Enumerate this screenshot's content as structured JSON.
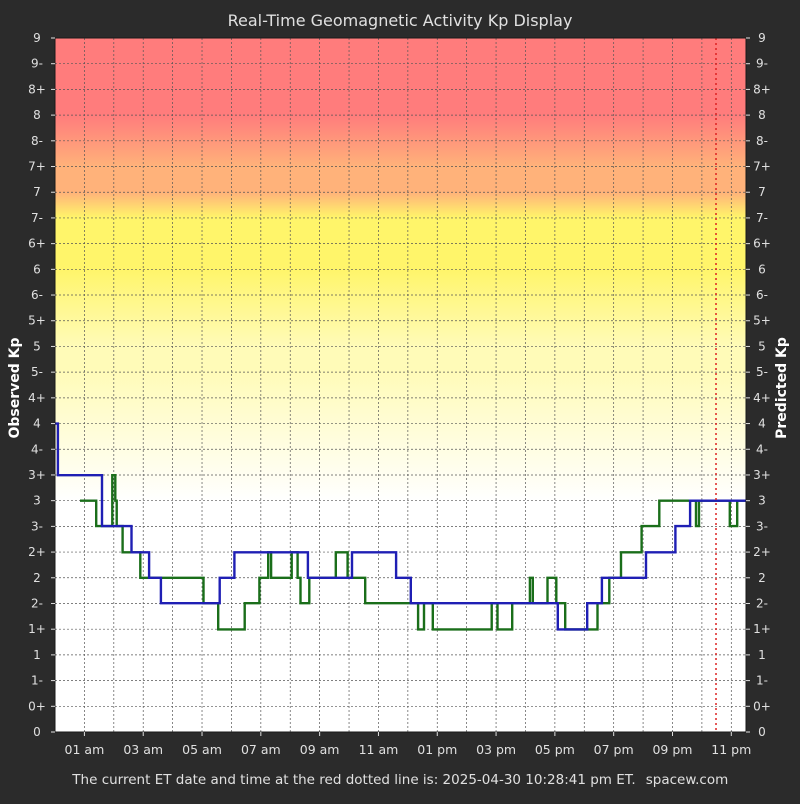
{
  "chart_data": {
    "type": "line",
    "title": "Real-Time Geomagnetic Activity Kp Display",
    "ylabel_left": "Observed Kp",
    "ylabel_right": "Predicted Kp",
    "footer": "The current ET date and time at the red dotted line is: 2025-04-30 10:28:41 pm ET.",
    "brand": "spacew.com",
    "x_unit": "hours since 00:00 ET",
    "xlim": [
      0,
      23.5
    ],
    "ylim": [
      0,
      9
    ],
    "x_ticks": [
      1,
      3,
      5,
      7,
      9,
      11,
      13,
      15,
      17,
      19,
      21,
      23
    ],
    "x_tick_labels": [
      "01 am",
      "03 am",
      "05 am",
      "07 am",
      "09 am",
      "11 am",
      "01 pm",
      "03 pm",
      "05 pm",
      "07 pm",
      "09 pm",
      "11 pm"
    ],
    "y_tick_labels": [
      "0",
      "0+",
      "1-",
      "1",
      "1+",
      "2-",
      "2",
      "2+",
      "3-",
      "3",
      "3+",
      "4-",
      "4",
      "4+",
      "5-",
      "5",
      "5+",
      "6-",
      "6",
      "6+",
      "7-",
      "7",
      "7+",
      "8-",
      "8",
      "8+",
      "9-",
      "9"
    ],
    "grid": true,
    "background_bands": [
      {
        "from": 0,
        "to": 3,
        "color": "#ffffff"
      },
      {
        "from": 4.67,
        "to": 5,
        "color": "#fffbb8"
      },
      {
        "from": 6,
        "to": 6.67,
        "color": "#fff56a"
      },
      {
        "from": 7,
        "to": 7.33,
        "color": "#ffb27a"
      },
      {
        "from": 8,
        "to": 9,
        "color": "#ff7c7c"
      }
    ],
    "current_time_x": 22.48,
    "current_time_color": "#dd2222",
    "series": [
      {
        "color": "#1a6e1a",
        "points": [
          [
            0.85,
            3
          ],
          [
            1.4,
            3
          ],
          [
            1.4,
            2.67
          ],
          [
            1.95,
            2.67
          ],
          [
            1.95,
            3.33
          ],
          [
            2.05,
            3.33
          ],
          [
            2.05,
            3
          ],
          [
            2.1,
            3
          ],
          [
            2.1,
            2.67
          ],
          [
            2.3,
            2.67
          ],
          [
            2.3,
            2.33
          ],
          [
            2.9,
            2.33
          ],
          [
            2.9,
            2
          ],
          [
            5.05,
            2
          ],
          [
            5.05,
            1.67
          ],
          [
            5.55,
            1.67
          ],
          [
            5.55,
            1.33
          ],
          [
            6.45,
            1.33
          ],
          [
            6.45,
            1.67
          ],
          [
            6.95,
            1.67
          ],
          [
            6.95,
            2
          ],
          [
            7.25,
            2
          ],
          [
            7.25,
            2.33
          ],
          [
            7.35,
            2.33
          ],
          [
            7.35,
            2
          ],
          [
            8.05,
            2
          ],
          [
            8.05,
            2.33
          ],
          [
            8.25,
            2.33
          ],
          [
            8.25,
            2
          ],
          [
            8.35,
            2
          ],
          [
            8.35,
            1.67
          ],
          [
            8.65,
            1.67
          ],
          [
            8.65,
            2
          ],
          [
            9.55,
            2
          ],
          [
            9.55,
            2.33
          ],
          [
            9.95,
            2.33
          ],
          [
            9.95,
            2
          ],
          [
            10.55,
            2
          ],
          [
            10.55,
            1.67
          ],
          [
            12.35,
            1.67
          ],
          [
            12.35,
            1.33
          ],
          [
            12.55,
            1.33
          ],
          [
            12.55,
            1.67
          ],
          [
            12.85,
            1.67
          ],
          [
            12.85,
            1.33
          ],
          [
            14.85,
            1.33
          ],
          [
            14.85,
            1.67
          ],
          [
            15.05,
            1.67
          ],
          [
            15.05,
            1.33
          ],
          [
            15.55,
            1.33
          ],
          [
            15.55,
            1.67
          ],
          [
            16.15,
            1.67
          ],
          [
            16.15,
            2
          ],
          [
            16.25,
            2
          ],
          [
            16.25,
            1.67
          ],
          [
            16.75,
            1.67
          ],
          [
            16.75,
            2
          ],
          [
            17.05,
            2
          ],
          [
            17.05,
            1.67
          ],
          [
            17.35,
            1.67
          ],
          [
            17.35,
            1.33
          ],
          [
            18.45,
            1.33
          ],
          [
            18.45,
            1.67
          ],
          [
            18.85,
            1.67
          ],
          [
            18.85,
            2
          ],
          [
            19.25,
            2
          ],
          [
            19.25,
            2.33
          ],
          [
            19.95,
            2.33
          ],
          [
            19.95,
            2.67
          ],
          [
            20.55,
            2.67
          ],
          [
            20.55,
            3
          ],
          [
            21.8,
            3
          ],
          [
            21.8,
            2.67
          ],
          [
            21.9,
            2.67
          ],
          [
            21.9,
            3
          ],
          [
            22.95,
            3
          ],
          [
            22.95,
            2.67
          ],
          [
            23.2,
            2.67
          ],
          [
            23.2,
            3
          ],
          [
            23.5,
            3
          ]
        ]
      },
      {
        "color": "#1f1fb4",
        "points": [
          [
            0,
            4
          ],
          [
            0.1,
            4
          ],
          [
            0.1,
            3.33
          ],
          [
            1.6,
            3.33
          ],
          [
            1.6,
            2.67
          ],
          [
            2.6,
            2.67
          ],
          [
            2.6,
            2.33
          ],
          [
            3.2,
            2.33
          ],
          [
            3.2,
            2
          ],
          [
            3.6,
            2
          ],
          [
            3.6,
            1.67
          ],
          [
            5.6,
            1.67
          ],
          [
            5.6,
            2
          ],
          [
            6.1,
            2
          ],
          [
            6.1,
            2.33
          ],
          [
            8.6,
            2.33
          ],
          [
            8.6,
            2
          ],
          [
            10.1,
            2
          ],
          [
            10.1,
            2.33
          ],
          [
            11.6,
            2.33
          ],
          [
            11.6,
            2
          ],
          [
            12.1,
            2
          ],
          [
            12.1,
            1.67
          ],
          [
            17.1,
            1.67
          ],
          [
            17.1,
            1.33
          ],
          [
            18.1,
            1.33
          ],
          [
            18.1,
            1.67
          ],
          [
            18.6,
            1.67
          ],
          [
            18.6,
            2
          ],
          [
            20.1,
            2
          ],
          [
            20.1,
            2.33
          ],
          [
            21.1,
            2.33
          ],
          [
            21.1,
            2.67
          ],
          [
            21.6,
            2.67
          ],
          [
            21.6,
            3
          ],
          [
            23.5,
            3
          ]
        ]
      }
    ]
  }
}
